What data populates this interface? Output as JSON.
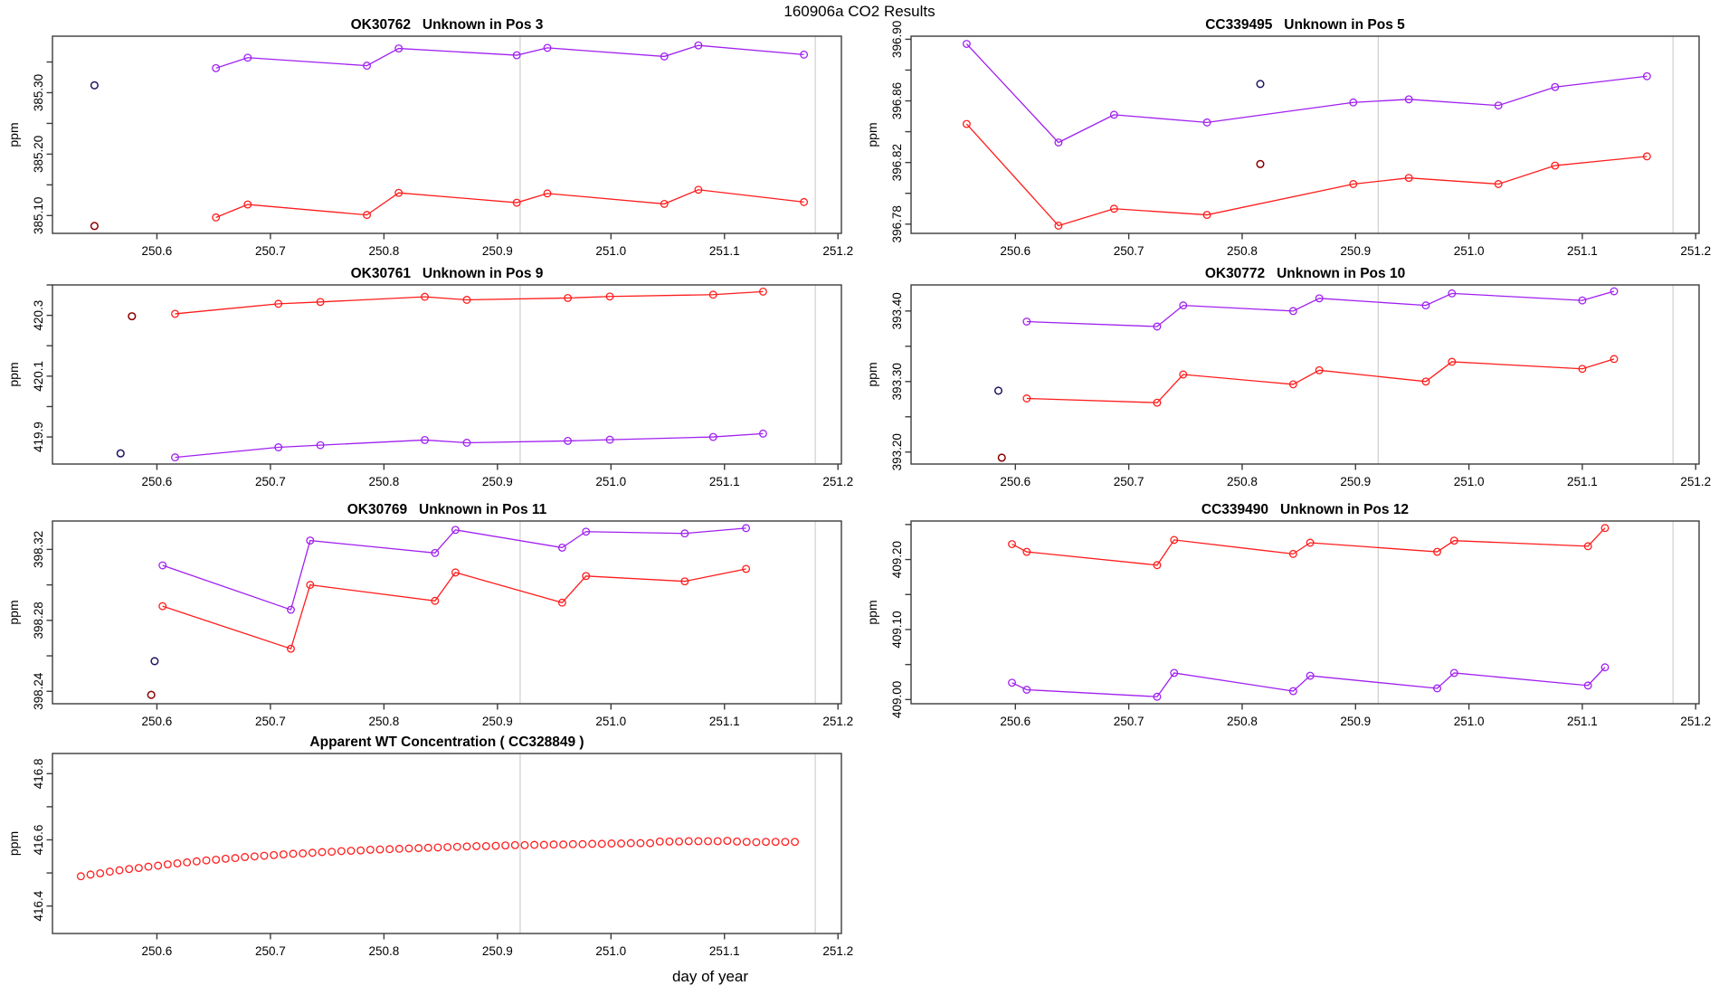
{
  "page": {
    "title": "160906a  CO2 Results",
    "xlabel": "day of year"
  },
  "colors": {
    "red": "#ff1c1c",
    "purple": "#a020f0",
    "navy": "#1c1560",
    "darkred": "#8b0000",
    "marker_line": "#cfcfcf",
    "axis": "#3c3c3c"
  },
  "chart_data": [
    {
      "type": "line",
      "title": "OK30762   Unknown in Pos 3",
      "ylabel": "ppm",
      "xlim": [
        250.508,
        251.203
      ],
      "ylim": [
        385.071,
        385.392
      ],
      "xticks": [
        "250.6",
        "250.7",
        "250.8",
        "250.9",
        "251.0",
        "251.1",
        "251.2"
      ],
      "ytick_labels": [
        "385.10",
        "385.20",
        "385.30"
      ],
      "ytick_step": 0.05,
      "vlines": [
        250.92,
        251.18
      ],
      "series": [
        {
          "name": "sample-purple",
          "color": "purple",
          "x": [
            250.652,
            250.68,
            250.785,
            250.813,
            250.917,
            250.944,
            251.047,
            251.077,
            251.17
          ],
          "y": [
            385.34,
            385.357,
            385.344,
            385.372,
            385.361,
            385.373,
            385.359,
            385.377,
            385.362
          ]
        },
        {
          "name": "sample-red",
          "color": "red",
          "x": [
            250.652,
            250.68,
            250.785,
            250.813,
            250.917,
            250.944,
            251.047,
            251.077,
            251.17
          ],
          "y": [
            385.097,
            385.118,
            385.101,
            385.137,
            385.121,
            385.136,
            385.119,
            385.142,
            385.122
          ]
        }
      ],
      "points": [
        {
          "color": "navy",
          "x": 250.545,
          "y": 385.312
        },
        {
          "color": "darkred",
          "x": 250.545,
          "y": 385.083
        }
      ]
    },
    {
      "type": "line",
      "title": "CC339495   Unknown in Pos 5",
      "ylabel": "ppm",
      "xlim": [
        250.508,
        251.203
      ],
      "ylim": [
        396.774,
        396.902
      ],
      "xticks": [
        "250.6",
        "250.7",
        "250.8",
        "250.9",
        "251.0",
        "251.1",
        "251.2"
      ],
      "ytick_labels": [
        "396.78",
        "396.82",
        "396.86",
        "396.90"
      ],
      "ytick_step": 0.02,
      "vlines": [
        250.92,
        251.18
      ],
      "series": [
        {
          "name": "sample-purple",
          "color": "purple",
          "x": [
            250.557,
            250.638,
            250.687,
            250.769,
            250.898,
            250.947,
            251.026,
            251.076,
            251.157
          ],
          "y": [
            396.897,
            396.833,
            396.851,
            396.846,
            396.859,
            396.861,
            396.857,
            396.869,
            396.876
          ]
        },
        {
          "name": "sample-red",
          "color": "red",
          "x": [
            250.557,
            250.638,
            250.687,
            250.769,
            250.898,
            250.947,
            251.026,
            251.076,
            251.157
          ],
          "y": [
            396.845,
            396.779,
            396.79,
            396.786,
            396.806,
            396.81,
            396.806,
            396.818,
            396.824
          ]
        }
      ],
      "points": [
        {
          "color": "navy",
          "x": 250.816,
          "y": 396.871
        },
        {
          "color": "darkred",
          "x": 250.816,
          "y": 396.819
        }
      ]
    },
    {
      "type": "line",
      "title": "OK30761   Unknown in Pos 9",
      "ylabel": "ppm",
      "xlim": [
        250.508,
        251.203
      ],
      "ylim": [
        419.811,
        420.4
      ],
      "xticks": [
        "250.6",
        "250.7",
        "250.8",
        "250.9",
        "251.0",
        "251.1",
        "251.2"
      ],
      "ytick_labels": [
        "419.9",
        "420.1",
        "420.3"
      ],
      "ytick_step": 0.1,
      "vlines": [
        250.92,
        251.18
      ],
      "series": [
        {
          "name": "sample-red",
          "color": "red",
          "x": [
            250.616,
            250.707,
            250.744,
            250.836,
            250.873,
            250.962,
            250.999,
            251.09,
            251.134
          ],
          "y": [
            420.305,
            420.338,
            420.344,
            420.361,
            420.351,
            420.357,
            420.362,
            420.368,
            420.378
          ]
        },
        {
          "name": "sample-purple",
          "color": "purple",
          "x": [
            250.616,
            250.707,
            250.744,
            250.836,
            250.873,
            250.962,
            250.999,
            251.09,
            251.134
          ],
          "y": [
            419.833,
            419.866,
            419.873,
            419.89,
            419.881,
            419.887,
            419.891,
            419.9,
            419.911
          ]
        }
      ],
      "points": [
        {
          "color": "darkred",
          "x": 250.578,
          "y": 420.297
        },
        {
          "color": "navy",
          "x": 250.568,
          "y": 419.846
        }
      ]
    },
    {
      "type": "line",
      "title": "OK30772   Unknown in Pos 10",
      "ylabel": "ppm",
      "xlim": [
        250.508,
        251.203
      ],
      "ylim": [
        393.183,
        393.437
      ],
      "xticks": [
        "250.6",
        "250.7",
        "250.8",
        "250.9",
        "251.0",
        "251.1",
        "251.2"
      ],
      "ytick_labels": [
        "393.20",
        "393.30",
        "393.40"
      ],
      "ytick_step": 0.05,
      "vlines": [
        250.92,
        251.18
      ],
      "series": [
        {
          "name": "sample-purple",
          "color": "purple",
          "x": [
            250.61,
            250.725,
            250.748,
            250.845,
            250.868,
            250.962,
            250.985,
            251.1,
            251.128
          ],
          "y": [
            393.385,
            393.378,
            393.408,
            393.4,
            393.418,
            393.408,
            393.425,
            393.415,
            393.428
          ]
        },
        {
          "name": "sample-red",
          "color": "red",
          "x": [
            250.61,
            250.725,
            250.748,
            250.845,
            250.868,
            250.962,
            250.985,
            251.1,
            251.128
          ],
          "y": [
            393.276,
            393.27,
            393.31,
            393.296,
            393.316,
            393.3,
            393.328,
            393.318,
            393.332
          ]
        }
      ],
      "points": [
        {
          "color": "navy",
          "x": 250.585,
          "y": 393.287
        },
        {
          "color": "darkred",
          "x": 250.588,
          "y": 393.192
        }
      ]
    },
    {
      "type": "line",
      "title": "OK30769   Unknown in Pos 11",
      "ylabel": "ppm",
      "xlim": [
        250.508,
        251.203
      ],
      "ylim": [
        398.233,
        398.336
      ],
      "xticks": [
        "250.6",
        "250.7",
        "250.8",
        "250.9",
        "251.0",
        "251.1",
        "251.2"
      ],
      "ytick_labels": [
        "398.24",
        "398.28",
        "398.32"
      ],
      "ytick_step": 0.02,
      "vlines": [
        250.92,
        251.18
      ],
      "series": [
        {
          "name": "sample-purple",
          "color": "purple",
          "x": [
            250.605,
            250.718,
            250.735,
            250.845,
            250.863,
            250.957,
            250.978,
            251.065,
            251.119
          ],
          "y": [
            398.311,
            398.286,
            398.325,
            398.318,
            398.331,
            398.321,
            398.33,
            398.329,
            398.332
          ]
        },
        {
          "name": "sample-red",
          "color": "red",
          "x": [
            250.605,
            250.718,
            250.735,
            250.845,
            250.863,
            250.957,
            250.978,
            251.065,
            251.119
          ],
          "y": [
            398.288,
            398.264,
            398.3,
            398.291,
            398.307,
            398.29,
            398.305,
            398.302,
            398.309
          ]
        }
      ],
      "points": [
        {
          "color": "navy",
          "x": 250.598,
          "y": 398.257
        },
        {
          "color": "darkred",
          "x": 250.595,
          "y": 398.238
        }
      ]
    },
    {
      "type": "line",
      "title": "CC339490   Unknown in Pos 12",
      "ylabel": "ppm",
      "xlim": [
        250.508,
        251.203
      ],
      "ylim": [
        408.994,
        409.255
      ],
      "xticks": [
        "250.6",
        "250.7",
        "250.8",
        "250.9",
        "251.0",
        "251.1",
        "251.2"
      ],
      "ytick_labels": [
        "409.00",
        "409.10",
        "409.20"
      ],
      "ytick_step": 0.05,
      "vlines": [
        250.92,
        251.18
      ],
      "series": [
        {
          "name": "sample-red",
          "color": "red",
          "x": [
            250.597,
            250.61,
            250.725,
            250.74,
            250.845,
            250.86,
            250.972,
            250.987,
            251.105,
            251.12
          ],
          "y": [
            409.222,
            409.211,
            409.192,
            409.228,
            409.208,
            409.224,
            409.211,
            409.227,
            409.219,
            409.245
          ]
        },
        {
          "name": "sample-purple",
          "color": "purple",
          "x": [
            250.597,
            250.61,
            250.725,
            250.74,
            250.845,
            250.86,
            250.972,
            250.987,
            251.105,
            251.12
          ],
          "y": [
            409.024,
            409.014,
            409.004,
            409.038,
            409.012,
            409.034,
            409.016,
            409.038,
            409.02,
            409.046
          ]
        }
      ],
      "points": []
    },
    {
      "type": "scatter",
      "title": "Apparent WT Concentration ( CC328849 )",
      "ylabel": "ppm",
      "xlim": [
        250.508,
        251.203
      ],
      "ylim": [
        416.317,
        416.861
      ],
      "xticks": [
        "250.6",
        "250.7",
        "250.8",
        "250.9",
        "251.0",
        "251.1",
        "251.2"
      ],
      "ytick_labels": [
        "416.4",
        "416.6",
        "416.8"
      ],
      "ytick_step": 0.1,
      "vlines": [
        250.92,
        251.18
      ],
      "series": [
        {
          "name": "wt-concentration",
          "color": "red",
          "markers_only": true,
          "x": [
            250.533,
            250.5415,
            250.55,
            250.5585,
            250.567,
            250.5755,
            250.584,
            250.5925,
            250.601,
            250.6095,
            250.618,
            250.6265,
            250.635,
            250.6435,
            250.652,
            250.6605,
            250.669,
            250.6775,
            250.686,
            250.6945,
            250.703,
            250.7115,
            250.72,
            250.7285,
            250.737,
            250.7455,
            250.754,
            250.7625,
            250.771,
            250.7795,
            250.788,
            250.7965,
            250.805,
            250.8135,
            250.822,
            250.8305,
            250.839,
            250.8475,
            250.856,
            250.8645,
            250.873,
            250.8815,
            250.89,
            250.8985,
            250.907,
            250.9155,
            250.924,
            250.9325,
            250.941,
            250.9495,
            250.958,
            250.9665,
            250.975,
            250.9835,
            250.992,
            251.0005,
            251.009,
            251.0175,
            251.026,
            251.0345,
            251.043,
            251.0515,
            251.06,
            251.0685,
            251.077,
            251.0855,
            251.094,
            251.1025,
            251.111,
            251.1195,
            251.128,
            251.1365,
            251.145,
            251.1535,
            251.162
          ],
          "y": [
            416.49,
            416.495,
            416.499,
            416.504,
            416.508,
            416.512,
            416.515,
            416.519,
            416.522,
            416.526,
            416.529,
            416.532,
            416.535,
            416.538,
            416.54,
            416.543,
            416.545,
            416.548,
            416.55,
            416.552,
            416.554,
            416.556,
            416.558,
            416.559,
            416.561,
            416.563,
            416.564,
            416.566,
            416.567,
            416.568,
            416.57,
            416.571,
            416.572,
            416.573,
            416.574,
            416.575,
            416.576,
            416.577,
            416.578,
            416.579,
            416.58,
            416.581,
            416.581,
            416.582,
            416.583,
            416.584,
            416.584,
            416.585,
            416.585,
            416.586,
            416.586,
            416.587,
            416.587,
            416.588,
            416.588,
            416.589,
            416.589,
            416.59,
            416.59,
            416.59,
            416.595,
            416.595,
            416.595,
            416.596,
            416.596,
            416.596,
            416.596,
            416.597,
            416.595,
            416.594,
            416.593,
            416.594,
            416.594,
            416.594,
            416.594
          ]
        }
      ],
      "points": []
    }
  ]
}
